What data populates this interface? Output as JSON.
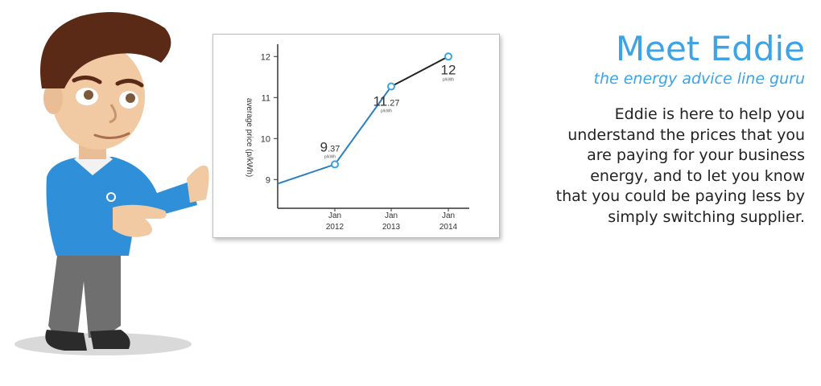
{
  "heading": {
    "title": "Meet Eddie",
    "subtitle": "the energy advice line guru"
  },
  "body_lines": [
    "Eddie is here to help you",
    "understand the prices that you",
    "are paying for your business",
    "energy, and to let you know",
    "that you could be paying less by",
    "simply switching supplier."
  ],
  "colors": {
    "accent": "#3ba3e6",
    "line": "#2a7fc0",
    "axis": "#333333",
    "text": "#222222"
  },
  "chart_data": {
    "type": "line",
    "title": "",
    "xlabel": "",
    "ylabel": "average price (p/kWh)",
    "ylim": [
      8.3,
      12.3
    ],
    "yticks": [
      "12",
      "11",
      "10",
      "9"
    ],
    "ytick_values": [
      12,
      11,
      10,
      9
    ],
    "categories": [
      "Jan 2012",
      "Jan 2013",
      "Jan 2014"
    ],
    "x_labels": [
      [
        "Jan",
        "2012"
      ],
      [
        "Jan",
        "2013"
      ],
      [
        "Jan",
        "2014"
      ]
    ],
    "series": [
      {
        "values": [
          9.37,
          11.27,
          12
        ]
      }
    ],
    "start_value": 8.9,
    "data_labels": [
      {
        "main": "9",
        "dec": ".37",
        "unit": "p/kWh"
      },
      {
        "main": "11",
        "dec": ".27",
        "unit": "p/kWh"
      },
      {
        "main": "12",
        "dec": "",
        "unit": "p/kWh"
      }
    ]
  }
}
